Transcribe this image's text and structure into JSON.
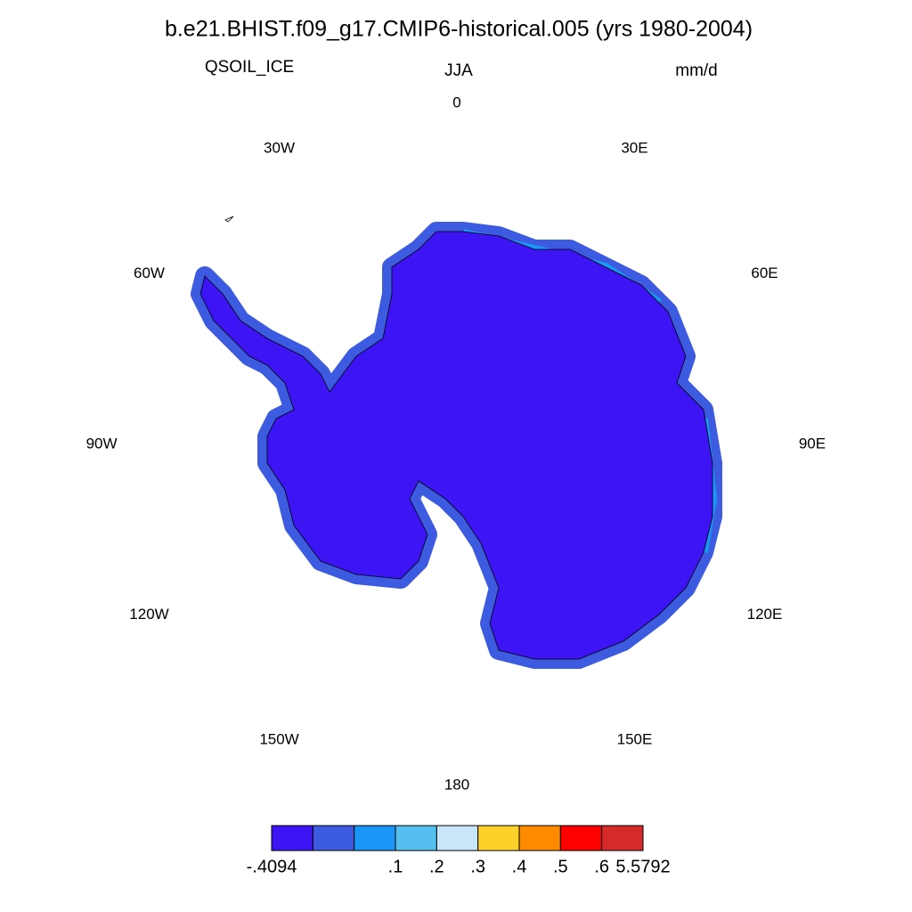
{
  "header": {
    "title": "b.e21.BHIST.f09_g17.CMIP6-historical.005 (yrs 1980-2004)",
    "left": "QSOIL_ICE",
    "center": "JJA",
    "right": "mm/d"
  },
  "map": {
    "lon_labels": [
      "0",
      "30E",
      "60E",
      "90E",
      "120E",
      "150E",
      "180",
      "150W",
      "120W",
      "90W",
      "60W",
      "30W"
    ]
  },
  "colorbar": {
    "colors": [
      "#3d15f5",
      "#3c5be0",
      "#1a96f7",
      "#55c0f0",
      "#c8e6f7",
      "#fdd12a",
      "#ff8a00",
      "#ff0000",
      "#d62a2a"
    ],
    "levels": [
      {
        "value": -0.4094,
        "label": "-.4094"
      },
      null,
      {
        "value": 0.1,
        "label": ".1"
      },
      {
        "value": 0.2,
        "label": ".2"
      },
      {
        "value": 0.3,
        "label": ".3"
      },
      {
        "value": 0.4,
        "label": ".4"
      },
      {
        "value": 0.5,
        "label": ".5"
      },
      {
        "value": 0.6,
        "label": ".6"
      },
      {
        "value": 5.5792,
        "label": "5.5792"
      }
    ]
  }
}
